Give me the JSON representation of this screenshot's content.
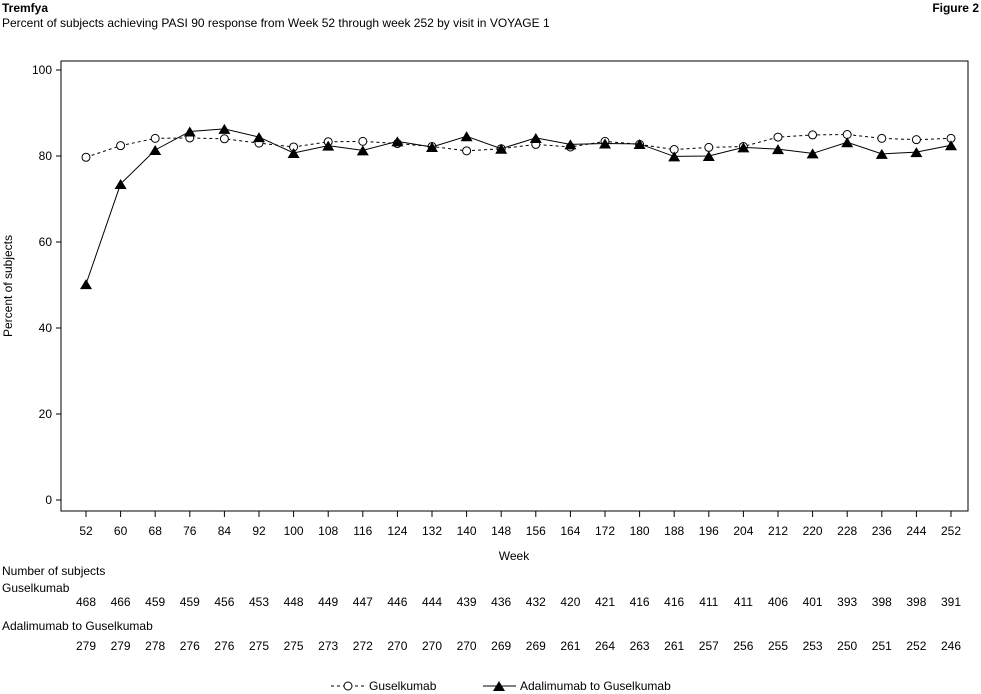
{
  "header": {
    "title": "Tremfya",
    "subtitle": "Percent of subjects achieving PASI 90 response from Week 52 through week 252 by visit in VOYAGE 1",
    "figure_label": "Figure 2"
  },
  "chart_data": {
    "type": "line",
    "xlabel": "Week",
    "ylabel": "Percent of subjects",
    "ylim": [
      0,
      100
    ],
    "yticks": [
      0,
      20,
      40,
      60,
      80,
      100
    ],
    "x": [
      52,
      60,
      68,
      76,
      84,
      92,
      100,
      108,
      116,
      124,
      132,
      140,
      148,
      156,
      164,
      172,
      180,
      188,
      196,
      204,
      212,
      220,
      228,
      236,
      244,
      252
    ],
    "series": [
      {
        "name": "Guselkumab",
        "marker": "open-circle",
        "line": "dashed",
        "values": [
          79.7,
          82.4,
          84.1,
          84.2,
          84.0,
          83.0,
          82.1,
          83.3,
          83.4,
          82.9,
          82.2,
          81.2,
          81.7,
          82.7,
          82.1,
          83.4,
          82.7,
          81.5,
          82.0,
          82.2,
          84.4,
          84.9,
          85.0,
          84.1,
          83.8,
          84.1
        ],
        "counts": [
          "468",
          "466",
          "459",
          "459",
          "456",
          "453",
          "448",
          "449",
          "447",
          "446",
          "444",
          "439",
          "436",
          "432",
          "420",
          "421",
          "416",
          "416",
          "411",
          "411",
          "406",
          "401",
          "393",
          "398",
          "398",
          "391"
        ]
      },
      {
        "name": "Adalimumab to Guselkumab",
        "marker": "filled-triangle",
        "line": "solid",
        "values": [
          50.2,
          73.5,
          81.4,
          85.7,
          86.3,
          84.4,
          80.7,
          82.4,
          81.3,
          83.4,
          82.1,
          84.6,
          81.7,
          84.2,
          82.7,
          82.9,
          82.8,
          79.9,
          80.0,
          82.0,
          81.6,
          80.6,
          83.2,
          80.5,
          80.9,
          82.5
        ],
        "counts": [
          "279",
          "279",
          "278",
          "276",
          "276",
          "275",
          "275",
          "273",
          "272",
          "270",
          "270",
          "270",
          "269",
          "269",
          "261",
          "264",
          "263",
          "261",
          "257",
          "256",
          "255",
          "253",
          "250",
          "251",
          "252",
          "246"
        ]
      }
    ],
    "table": {
      "title": "Number of subjects",
      "row_labels": [
        "Guselkumab",
        "Adalimumab to Guselkumab"
      ]
    },
    "legend_position": "bottom-center",
    "grid": false,
    "colors": {
      "line": "#000000",
      "background": "#ffffff"
    }
  }
}
